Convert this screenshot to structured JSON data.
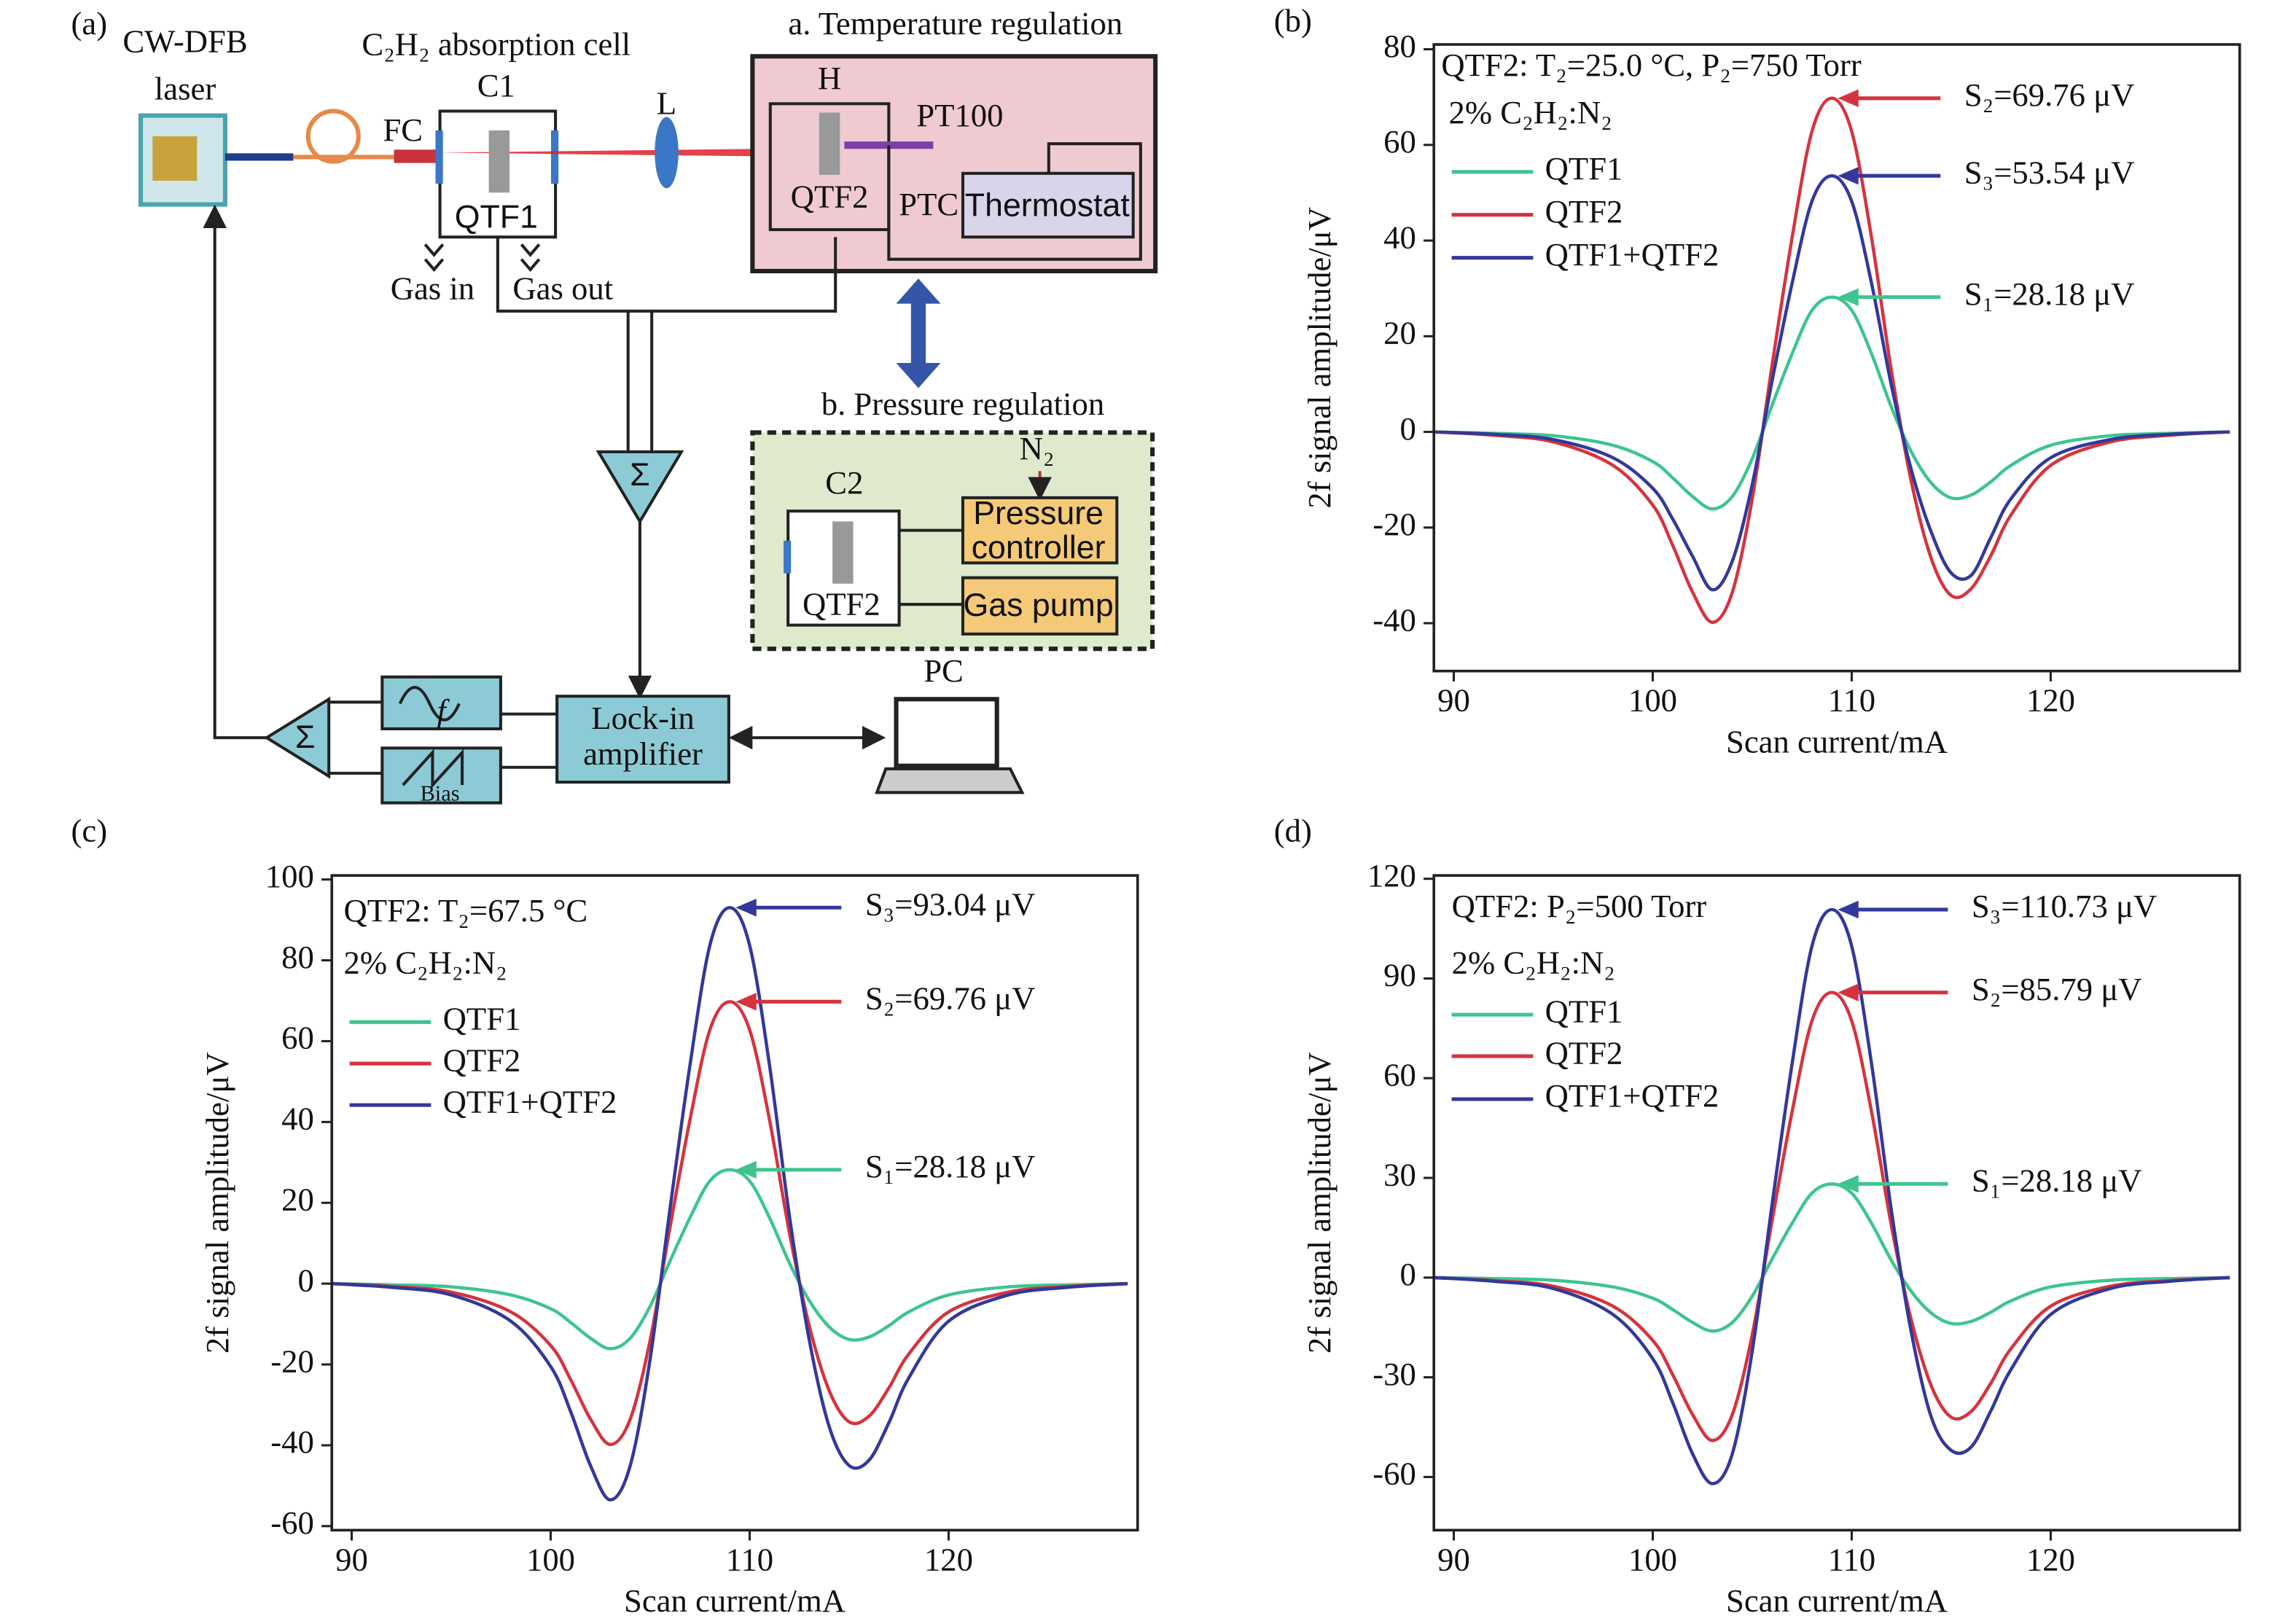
{
  "diagram": {
    "panel_label": "(a)",
    "labels": {
      "laser_1": "CW-DFB",
      "laser_2": "laser",
      "cell": "C₂H₂ absorption cell",
      "c1": "C1",
      "fc": "FC",
      "qtf1": "QTF1",
      "gas_in": "Gas in",
      "gas_out": "Gas out",
      "lens": "L",
      "temp": "a. Temperature regulation",
      "h": "H",
      "pt100": "PT100",
      "qtf2_a": "QTF2",
      "ptc": "PTC",
      "thermostat": "Thermostat",
      "pressure": "b. Pressure regulation",
      "n2": "N₂",
      "c2": "C2",
      "qtf2_b": "QTF2",
      "controller_1": "Pressure",
      "controller_2": "controller",
      "gas_pump": "Gas pump",
      "sum_1": "Σ",
      "sum_2": "Σ",
      "f": "f",
      "bias": "Bias",
      "lockin_1": "Lock-in",
      "lockin_2": "amplifier",
      "pc": "PC"
    }
  },
  "chart_data": [
    {
      "type": "line",
      "panel_label": "(b)",
      "title": "QTF2: T₂=25.0 °C, P₂=750 Torr",
      "subtitle": "2% C₂H₂:N₂",
      "x_label": "Scan current/mA",
      "y_label": "2f signal amplitude/μV",
      "x": [
        89,
        92,
        95,
        98,
        100,
        101,
        102,
        103,
        104,
        105,
        106,
        107,
        108,
        109,
        110,
        111,
        112,
        113,
        114,
        115,
        116,
        117,
        118,
        120,
        123,
        126,
        129
      ],
      "xlim": [
        89,
        129.5
      ],
      "xticks": [
        90,
        100,
        110,
        120
      ],
      "ylim": [
        -50,
        81
      ],
      "yticks": [
        -40,
        -20,
        0,
        20,
        40,
        60,
        80
      ],
      "series": [
        {
          "name": "QTF1",
          "color": "#3fc48f",
          "values": [
            0,
            -0.3,
            -0.8,
            -2.8,
            -6.2,
            -9.6,
            -13.5,
            -16.1,
            -13.5,
            -5.6,
            5.6,
            16.3,
            25.4,
            28.18,
            25.4,
            16.3,
            5.1,
            -4.2,
            -10.7,
            -13.8,
            -13.2,
            -10.4,
            -7,
            -2.8,
            -0.8,
            -0.3,
            0
          ]
        },
        {
          "name": "QTF2",
          "color": "#d4343f",
          "values": [
            0,
            -0.7,
            -2.1,
            -7,
            -15.3,
            -23.7,
            -33.5,
            -39.8,
            -33.5,
            -14,
            14,
            40.5,
            62.8,
            69.76,
            62.8,
            40.5,
            12.6,
            -10.5,
            -26.5,
            -34.2,
            -32.8,
            -25.8,
            -17.4,
            -7,
            -2.1,
            -0.7,
            0
          ]
        },
        {
          "name": "QTF1+QTF2",
          "color": "#33389a",
          "values": [
            0,
            -0.5,
            -1.6,
            -5.4,
            -11.8,
            -18.2,
            -26,
            -33,
            -27,
            -11,
            10.7,
            31,
            48.2,
            53.54,
            48.2,
            31,
            9.6,
            -8,
            -21,
            -29.5,
            -30,
            -22,
            -14,
            -5.4,
            -1.6,
            -0.5,
            0
          ]
        }
      ],
      "annotations": [
        "S₂=69.76 μV",
        "S₃=53.54 μV",
        "S₁=28.18 μV"
      ]
    },
    {
      "type": "line",
      "panel_label": "(c)",
      "title": "QTF2: T₂=67.5 °C",
      "subtitle": "2% C₂H₂:N₂",
      "x_label": "Scan current/mA",
      "y_label": "2f signal amplitude/μV",
      "x": [
        89,
        92,
        95,
        98,
        100,
        101,
        102,
        103,
        104,
        105,
        106,
        107,
        108,
        109,
        110,
        111,
        112,
        113,
        114,
        115,
        116,
        117,
        118,
        120,
        123,
        126,
        129
      ],
      "xlim": [
        89,
        129.5
      ],
      "xticks": [
        90,
        100,
        110,
        120
      ],
      "ylim": [
        -61,
        101
      ],
      "yticks": [
        -60,
        -40,
        -20,
        0,
        20,
        40,
        60,
        80,
        100
      ],
      "series": [
        {
          "name": "QTF1",
          "color": "#3fc48f",
          "values": [
            0,
            -0.3,
            -0.8,
            -2.8,
            -6.2,
            -9.6,
            -13.5,
            -16.1,
            -13.5,
            -5.6,
            5.6,
            16.3,
            25.4,
            28.18,
            25.4,
            16.3,
            5.1,
            -4.2,
            -10.7,
            -13.8,
            -13.2,
            -10.4,
            -7,
            -2.8,
            -0.8,
            -0.3,
            0
          ]
        },
        {
          "name": "QTF2",
          "color": "#d4343f",
          "values": [
            0,
            -0.7,
            -2.1,
            -7,
            -15.3,
            -23.7,
            -33.5,
            -39.8,
            -33.5,
            -14,
            14,
            40.5,
            62.8,
            69.76,
            62.8,
            40.5,
            12.6,
            -10.5,
            -26.5,
            -34.2,
            -32.8,
            -25.8,
            -17.4,
            -7,
            -2.1,
            -0.7,
            0
          ]
        },
        {
          "name": "QTF1+QTF2",
          "color": "#33389a",
          "values": [
            0,
            -0.9,
            -2.8,
            -9.3,
            -20.5,
            -31.6,
            -45,
            -53.5,
            -45,
            -18.6,
            18.6,
            54,
            83.7,
            93.04,
            83.7,
            54,
            16.7,
            -14,
            -35.4,
            -45,
            -43.7,
            -34.4,
            -23.3,
            -9.3,
            -2.8,
            -0.9,
            0
          ]
        }
      ],
      "annotations": [
        "S₃=93.04 μV",
        "S₂=69.76 μV",
        "S₁=28.18 μV"
      ]
    },
    {
      "type": "line",
      "panel_label": "(d)",
      "title": "QTF2: P₂=500 Torr",
      "subtitle": "2% C₂H₂:N₂",
      "x_label": "Scan current/mA",
      "y_label": "2f signal amplitude/μV",
      "x": [
        89,
        92,
        95,
        98,
        100,
        101,
        102,
        103,
        104,
        105,
        106,
        107,
        108,
        109,
        110,
        111,
        112,
        113,
        114,
        115,
        116,
        117,
        118,
        120,
        123,
        126,
        129
      ],
      "xlim": [
        89,
        129.5
      ],
      "xticks": [
        90,
        100,
        110,
        120
      ],
      "ylim": [
        -76,
        121
      ],
      "yticks": [
        -60,
        -30,
        0,
        30,
        60,
        90,
        120
      ],
      "series": [
        {
          "name": "QTF1",
          "color": "#3fc48f",
          "values": [
            0,
            -0.3,
            -0.8,
            -2.8,
            -6.2,
            -9.6,
            -13.5,
            -16.1,
            -13.5,
            -5.6,
            5.6,
            16.3,
            25.4,
            28.18,
            25.4,
            16.3,
            5.1,
            -4.2,
            -10.7,
            -13.8,
            -13.2,
            -10.4,
            -7,
            -2.8,
            -0.8,
            -0.3,
            0
          ]
        },
        {
          "name": "QTF2",
          "color": "#d4343f",
          "values": [
            0,
            -0.9,
            -2.6,
            -8.6,
            -18.9,
            -29.2,
            -41.2,
            -49,
            -41.2,
            -17.2,
            17.2,
            49.8,
            77.2,
            85.79,
            77.2,
            49.8,
            15.4,
            -12.9,
            -32.6,
            -42,
            -40.3,
            -31.7,
            -21.4,
            -8.6,
            -2.6,
            -0.9,
            0
          ]
        },
        {
          "name": "QTF1+QTF2",
          "color": "#33389a",
          "values": [
            0,
            -1.1,
            -3.3,
            -11.1,
            -24.4,
            -37.6,
            -53,
            -62,
            -53,
            -22.1,
            22.1,
            64.2,
            99.7,
            110.73,
            99.7,
            64.2,
            19.9,
            -16.6,
            -42,
            -52,
            -51,
            -40,
            -27.7,
            -11.1,
            -3.3,
            -1.1,
            0
          ]
        }
      ],
      "annotations": [
        "S₃=110.73 μV",
        "S₂=85.79 μV",
        "S₁=28.18 μV"
      ]
    }
  ]
}
